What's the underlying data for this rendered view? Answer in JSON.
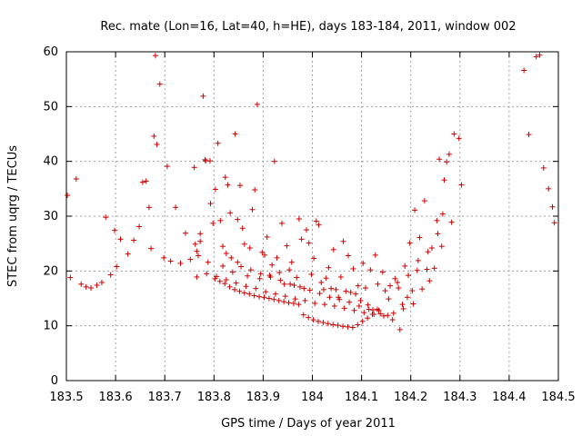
{
  "chart_data": {
    "type": "scatter",
    "title": "Rec. mate (Lon=16, Lat=40, h=HE), days 183-184, 2011, window 002",
    "xlabel": "GPS time / Days of year 2011",
    "ylabel": "STEC from uqrg / TECUs",
    "xlim": [
      183.5,
      184.5
    ],
    "ylim": [
      0,
      60
    ],
    "xticks": [
      "183.5",
      "183.6",
      "183.7",
      "183.8",
      "183.9",
      "184",
      "184.1",
      "184.2",
      "184.3",
      "184.4",
      "184.5"
    ],
    "yticks": [
      "0",
      "10",
      "20",
      "30",
      "40",
      "50",
      "60"
    ],
    "grid": true,
    "marker": "+",
    "color": "#cc0000",
    "x": [
      183.502,
      183.508,
      183.52,
      183.53,
      183.54,
      183.55,
      183.562,
      183.572,
      183.58,
      183.59,
      183.598,
      183.602,
      183.61,
      183.625,
      183.637,
      183.648,
      183.655,
      183.662,
      183.668,
      183.672,
      183.678,
      183.681,
      183.684,
      183.69,
      183.698,
      183.705,
      183.712,
      183.722,
      183.732,
      183.742,
      183.752,
      183.762,
      183.765,
      183.768,
      183.772,
      183.778,
      183.783,
      183.788,
      183.793,
      183.798,
      183.803,
      183.808,
      183.813,
      183.818,
      183.823,
      183.828,
      183.833,
      183.838,
      183.843,
      183.848,
      183.853,
      183.858,
      183.862,
      183.868,
      183.873,
      183.878,
      183.883,
      183.888,
      183.893,
      183.898,
      183.903,
      183.908,
      183.913,
      183.918,
      183.923,
      183.928,
      183.933,
      183.938,
      183.943,
      183.948,
      183.953,
      183.958,
      183.963,
      183.968,
      183.973,
      183.978,
      183.983,
      183.988,
      183.993,
      183.998,
      184.003,
      184.008,
      184.013,
      184.018,
      184.023,
      184.028,
      184.033,
      184.038,
      184.043,
      184.048,
      184.053,
      184.058,
      184.063,
      184.068,
      184.073,
      184.078,
      184.083,
      184.088,
      184.093,
      184.098,
      184.103,
      184.108,
      184.113,
      184.118,
      184.123,
      184.128,
      184.133,
      184.138,
      184.143,
      184.148,
      184.153,
      184.158,
      184.163,
      184.168,
      184.173,
      184.178,
      184.183,
      184.188,
      184.193,
      184.198,
      184.203,
      184.208,
      184.213,
      184.218,
      184.223,
      184.228,
      184.233,
      184.238,
      184.243,
      184.248,
      184.253,
      184.258,
      184.263,
      184.268,
      184.273,
      184.278,
      184.283,
      184.288,
      184.298,
      184.303,
      184.43,
      184.44,
      184.455,
      184.462,
      184.47,
      184.48,
      184.488,
      184.492,
      183.76,
      183.772,
      183.782,
      183.792,
      183.802,
      183.812,
      183.822,
      183.832,
      183.842,
      183.852,
      183.862,
      183.872,
      183.882,
      183.892,
      183.902,
      183.912,
      183.922,
      183.932,
      183.942,
      183.952,
      183.962,
      183.972,
      183.982,
      183.992,
      184.002,
      184.012,
      184.022,
      184.032,
      184.042,
      184.052,
      184.062,
      184.072,
      184.082,
      184.092,
      184.102,
      184.112,
      184.122,
      184.132,
      183.765,
      183.785,
      183.805,
      183.825,
      183.845,
      183.865,
      183.885,
      183.905,
      183.925,
      183.945,
      183.965,
      183.985,
      184.005,
      184.025,
      184.045,
      184.065,
      184.085,
      184.105,
      184.125,
      184.145,
      184.165,
      184.185,
      184.205,
      183.818,
      183.825,
      183.835,
      183.848,
      183.855,
      183.875,
      183.895,
      183.915,
      183.935,
      183.955,
      183.975,
      183.995,
      184.015,
      184.035,
      184.055,
      184.075,
      184.095,
      184.115,
      184.135,
      184.155,
      184.175,
      184.195,
      184.215,
      184.235,
      184.255,
      184.265
    ],
    "y": [
      33.8,
      18.8,
      36.8,
      17.6,
      17.1,
      16.9,
      17.4,
      17.9,
      29.8,
      19.3,
      27.4,
      20.8,
      25.8,
      23.1,
      25.6,
      28.1,
      36.2,
      36.4,
      31.6,
      24.1,
      44.6,
      59.3,
      43.1,
      54.1,
      22.4,
      39.1,
      21.8,
      31.6,
      21.4,
      26.9,
      22.1,
      24.9,
      23.6,
      22.8,
      25.4,
      51.9,
      40.1,
      21.6,
      32.3,
      28.7,
      34.9,
      43.3,
      29.2,
      20.9,
      37.1,
      35.7,
      30.6,
      19.8,
      45.0,
      29.4,
      35.6,
      27.8,
      24.9,
      19.1,
      24.2,
      31.2,
      34.8,
      50.4,
      18.6,
      23.4,
      22.9,
      26.2,
      19.2,
      21.1,
      40.0,
      22.4,
      19.7,
      28.7,
      17.6,
      24.6,
      20.2,
      21.6,
      17.4,
      18.8,
      29.5,
      25.8,
      16.8,
      27.5,
      25.1,
      19.4,
      22.3,
      29.1,
      28.4,
      17.9,
      16.6,
      18.7,
      20.6,
      16.8,
      23.9,
      16.6,
      15.2,
      18.9,
      25.4,
      16.3,
      22.8,
      16.1,
      20.4,
      15.8,
      17.3,
      14.6,
      21.4,
      16.9,
      13.8,
      20.2,
      12.9,
      22.9,
      17.6,
      12.2,
      19.8,
      16.4,
      11.9,
      17.3,
      11.1,
      18.6,
      17.9,
      9.3,
      13.9,
      20.9,
      15.2,
      25.1,
      16.4,
      31.1,
      20.1,
      26.1,
      16.7,
      32.8,
      20.3,
      18.2,
      24.2,
      20.5,
      29.2,
      40.4,
      24.5,
      36.6,
      39.9,
      41.3,
      28.9,
      45.0,
      44.2,
      35.7,
      56.6,
      44.9,
      59.1,
      59.4,
      38.8,
      35.0,
      31.7,
      28.8,
      38.9,
      26.8,
      40.3,
      40.1,
      18.6,
      18.1,
      17.7,
      17.1,
      16.6,
      16.3,
      16.0,
      15.8,
      15.5,
      15.3,
      15.2,
      15.0,
      14.8,
      14.6,
      14.4,
      14.2,
      14.1,
      13.9,
      12.0,
      11.5,
      11.1,
      10.8,
      10.6,
      10.4,
      10.2,
      10.1,
      9.9,
      9.8,
      9.7,
      10.2,
      10.8,
      11.4,
      12.1,
      13.0,
      18.9,
      19.5,
      19.0,
      18.4,
      17.8,
      17.2,
      16.8,
      16.2,
      15.8,
      15.4,
      14.9,
      14.6,
      14.1,
      13.9,
      13.6,
      13.2,
      12.8,
      12.4,
      12.1,
      11.8,
      12.3,
      13.1,
      14.0,
      24.5,
      23.2,
      22.4,
      21.6,
      20.8,
      20.2,
      19.5,
      18.9,
      18.3,
      17.6,
      17.1,
      16.5,
      15.9,
      15.2,
      14.8,
      14.3,
      13.6,
      13.0,
      12.8,
      14.9,
      16.9,
      19.2,
      21.9,
      23.5,
      26.8,
      30.4
    ]
  }
}
